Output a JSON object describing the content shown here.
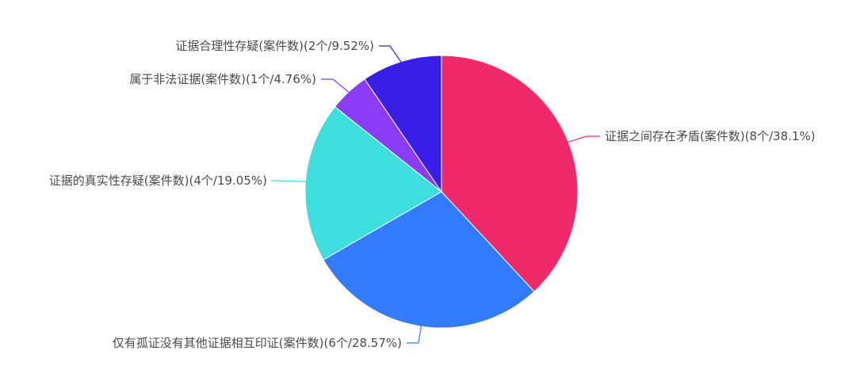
{
  "chart_data": {
    "type": "pie",
    "slices": [
      {
        "label": "证据之间存在矛盾(案件数)(8个/38.1%)",
        "value": 8,
        "percent": 38.1,
        "color": "#f0296b"
      },
      {
        "label": "仅有孤证没有其他证据相互印证(案件数)(6个/28.57%)",
        "value": 6,
        "percent": 28.57,
        "color": "#327bfc"
      },
      {
        "label": "证据的真实性存疑(案件数)(4个/19.05%)",
        "value": 4,
        "percent": 19.05,
        "color": "#3edede"
      },
      {
        "label": "属于非法证据(案件数)(1个/4.76%)",
        "value": 1,
        "percent": 4.76,
        "color": "#8a3cf6"
      },
      {
        "label": "证据合理性存疑(案件数)(2个/9.52%)",
        "value": 2,
        "percent": 9.52,
        "color": "#391ee8"
      }
    ]
  }
}
